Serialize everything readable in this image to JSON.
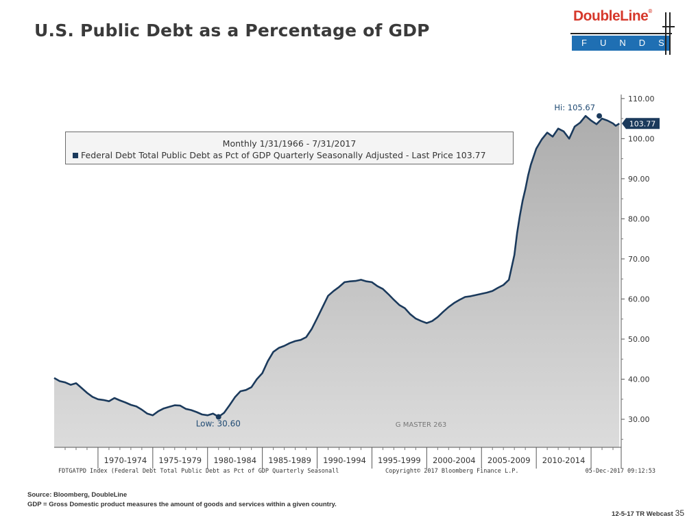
{
  "title": "U.S. Public Debt as a Percentage of GDP",
  "logo": {
    "name": "DoubleLine",
    "registered": "®",
    "sub": "FUNDS"
  },
  "legend": {
    "period": "Monthly 1/31/1966 - 7/31/2017",
    "series": "Federal Debt Total Public Debt as Pct of GDP Quarterly Seasonally Adjusted - Last Price 103.77"
  },
  "bloomberg_footer": {
    "ticker": "FDTGATPD Index (Federal Debt Total Public Debt as Pct of GDP Quarterly Seasonall",
    "copyright": "Copyright© 2017 Bloomberg Finance L.P.",
    "timestamp": "05-Dec-2017 09:12:53"
  },
  "watermark": "G MASTER 263",
  "footer": {
    "source": "Source: Bloomberg, DoubleLine",
    "note": "GDP = Gross Domestic product measures the amount of goods and services within a given country.",
    "event": "12-5-17 TR Webcast",
    "page": "35"
  },
  "colors": {
    "line": "#1b3a5c",
    "area_top": "#b0b0b0",
    "area_bottom": "#dedede",
    "title": "#3a3a3a",
    "logo_red": "#d6382b",
    "logo_blue": "#1f6fb3"
  },
  "chart_data": {
    "type": "area",
    "x_unit": "year",
    "x": [
      1966.0,
      1966.5,
      1967.0,
      1967.5,
      1968.0,
      1968.5,
      1969.0,
      1969.5,
      1970.0,
      1970.5,
      1971.0,
      1971.5,
      1972.0,
      1972.5,
      1973.0,
      1973.5,
      1974.0,
      1974.5,
      1975.0,
      1975.5,
      1976.0,
      1976.5,
      1977.0,
      1977.5,
      1978.0,
      1978.5,
      1979.0,
      1979.5,
      1980.0,
      1980.5,
      1981.0,
      1981.5,
      1982.0,
      1982.5,
      1983.0,
      1983.5,
      1984.0,
      1984.5,
      1985.0,
      1985.5,
      1986.0,
      1986.5,
      1987.0,
      1987.5,
      1988.0,
      1988.5,
      1989.0,
      1989.5,
      1990.0,
      1990.5,
      1991.0,
      1991.5,
      1992.0,
      1992.5,
      1993.0,
      1993.5,
      1994.0,
      1994.5,
      1995.0,
      1995.5,
      1996.0,
      1996.5,
      1997.0,
      1997.5,
      1998.0,
      1998.5,
      1999.0,
      1999.5,
      2000.0,
      2000.5,
      2001.0,
      2001.5,
      2002.0,
      2002.5,
      2003.0,
      2003.5,
      2004.0,
      2004.5,
      2005.0,
      2005.5,
      2006.0,
      2006.5,
      2007.0,
      2007.5,
      2008.0,
      2008.25,
      2008.5,
      2008.75,
      2009.0,
      2009.25,
      2009.5,
      2010.0,
      2010.5,
      2011.0,
      2011.5,
      2012.0,
      2012.5,
      2013.0,
      2013.5,
      2014.0,
      2014.5,
      2015.0,
      2015.5,
      2016.0,
      2016.5,
      2017.0,
      2017.25,
      2017.58
    ],
    "y": [
      40.3,
      39.5,
      39.2,
      38.6,
      39.0,
      37.8,
      36.6,
      35.6,
      35.0,
      34.8,
      34.5,
      35.3,
      34.7,
      34.2,
      33.6,
      33.2,
      32.4,
      31.4,
      31.0,
      32.0,
      32.7,
      33.1,
      33.5,
      33.4,
      32.6,
      32.3,
      31.8,
      31.2,
      31.0,
      31.4,
      30.6,
      31.6,
      33.5,
      35.5,
      37.0,
      37.3,
      38.0,
      40.0,
      41.5,
      44.5,
      46.8,
      47.8,
      48.3,
      49.0,
      49.5,
      49.8,
      50.5,
      52.5,
      55.2,
      58.0,
      60.8,
      62.0,
      63.0,
      64.2,
      64.4,
      64.5,
      64.8,
      64.4,
      64.2,
      63.2,
      62.5,
      61.2,
      59.8,
      58.5,
      57.7,
      56.2,
      55.1,
      54.5,
      54.0,
      54.5,
      55.5,
      56.8,
      58.0,
      59.0,
      59.8,
      60.5,
      60.7,
      61.0,
      61.3,
      61.6,
      62.0,
      62.8,
      63.5,
      64.8,
      71.0,
      76.5,
      80.8,
      84.5,
      87.4,
      90.8,
      93.5,
      97.5,
      99.8,
      101.5,
      100.5,
      102.5,
      101.8,
      100.0,
      103.0,
      104.0,
      105.67,
      104.5,
      103.6,
      105.0,
      104.5,
      103.8,
      103.2,
      103.77
    ],
    "y_ticks": [
      "110.00",
      "100.00",
      "90.00",
      "80.00",
      "70.00",
      "60.00",
      "50.00",
      "40.00",
      "30.00"
    ],
    "y_tick_values": [
      110,
      100,
      90,
      80,
      70,
      60,
      50,
      40,
      30
    ],
    "ylim": [
      23,
      111
    ],
    "xlim": [
      1966.0,
      2017.75
    ],
    "x_categories": [
      "1970-1974",
      "1975-1979",
      "1980-1984",
      "1985-1989",
      "1990-1994",
      "1995-1999",
      "2000-2004",
      "2005-2009",
      "2010-2014"
    ],
    "x_category_ranges": [
      [
        1970,
        1975
      ],
      [
        1975,
        1980
      ],
      [
        1980,
        1985
      ],
      [
        1985,
        1990
      ],
      [
        1990,
        1995
      ],
      [
        1995,
        2000
      ],
      [
        2000,
        2005
      ],
      [
        2005,
        2010
      ],
      [
        2010,
        2015
      ]
    ],
    "x_divider_years": [
      1970,
      1975,
      1980,
      1985,
      1990,
      1995,
      2000,
      2005,
      2010,
      2015
    ],
    "annotations": {
      "high": {
        "label": "Hi: 105.67",
        "x": 2015.75,
        "y": 105.67
      },
      "low": {
        "label": "Low: 30.60",
        "x": 1981.0,
        "y": 30.6
      },
      "last": {
        "label": "103.77",
        "y": 103.77
      }
    }
  }
}
